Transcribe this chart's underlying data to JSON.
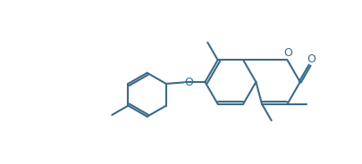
{
  "bg_color": "#ffffff",
  "line_color": "#3a6b8a",
  "line_width": 1.5,
  "figsize": [
    4.05,
    1.84
  ],
  "dpi": 100,
  "xlim": [
    0,
    10.2
  ],
  "ylim": [
    0,
    4.6
  ]
}
